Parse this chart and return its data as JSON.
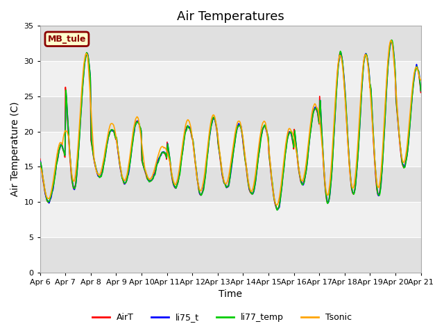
{
  "title": "Air Temperatures",
  "ylabel": "Air Temperature (C)",
  "xlabel": "Time",
  "station_label": "MB_tule",
  "ylim": [
    0,
    35
  ],
  "yticks": [
    0,
    5,
    10,
    15,
    20,
    25,
    30,
    35
  ],
  "x_tick_labels": [
    "Apr 6",
    "Apr 7",
    "Apr 8",
    "Apr 9",
    "Apr 10",
    "Apr 11",
    "Apr 12",
    "Apr 13",
    "Apr 14",
    "Apr 15",
    "Apr 16",
    "Apr 17",
    "Apr 18",
    "Apr 19",
    "Apr 20",
    "Apr 21"
  ],
  "colors": {
    "AirT": "#ff0000",
    "li75_t": "#0000ff",
    "li77_temp": "#00cc00",
    "Tsonic": "#ffa500"
  },
  "legend_labels": [
    "AirT",
    "li75_t",
    "li77_temp",
    "Tsonic"
  ],
  "band_colors": [
    "#e8e8e8",
    "#f5f5f5"
  ],
  "station_box_bg": "#ffffcc",
  "station_box_edge": "#8b0000",
  "title_fontsize": 13,
  "axis_label_fontsize": 10,
  "tick_fontsize": 8,
  "linewidth": 1.2
}
